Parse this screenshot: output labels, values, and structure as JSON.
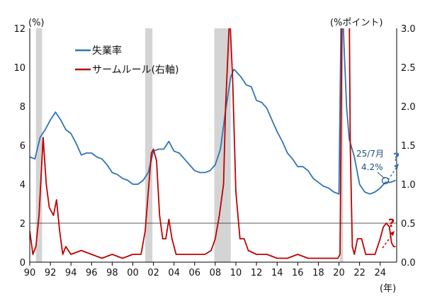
{
  "chart_data": {
    "type": "line",
    "title": "",
    "left_axis": {
      "unit": "(%)",
      "range": [
        0,
        12
      ],
      "ticks": [
        "0",
        "2",
        "4",
        "6",
        "8",
        "10",
        "12"
      ]
    },
    "right_axis": {
      "unit": "(%ポイント)",
      "range": [
        0,
        3.0
      ],
      "ticks": [
        "0.0",
        "0.5",
        "1.0",
        "1.5",
        "2.0",
        "2.5",
        "3.0"
      ]
    },
    "x_axis": {
      "unit": "(年)",
      "range": [
        1990,
        2025.6
      ],
      "tick_values": [
        1990,
        1992,
        1994,
        1996,
        1998,
        2000,
        2002,
        2004,
        2006,
        2008,
        2010,
        2012,
        2014,
        2016,
        2018,
        2020,
        2022,
        2024
      ],
      "tick_labels": [
        "90",
        "92",
        "94",
        "96",
        "98",
        "00",
        "02",
        "04",
        "06",
        "08",
        "10",
        "12",
        "14",
        "16",
        "18",
        "20",
        "22",
        "24"
      ]
    },
    "recessions": [
      [
        1990.6,
        1991.2
      ],
      [
        2001.2,
        2001.9
      ],
      [
        2007.9,
        2009.5
      ],
      [
        2020.1,
        2020.4
      ]
    ],
    "reference_line": {
      "axis": "right",
      "value": 0.5
    },
    "legend": {
      "placement": "top-left",
      "position": "upper-left"
    },
    "series": [
      {
        "name": "失業率",
        "axis": "left",
        "color": "#2e75b6",
        "x": [
          1990.0,
          1990.5,
          1991.0,
          1991.5,
          1992.0,
          1992.5,
          1993.0,
          1993.5,
          1994.0,
          1994.5,
          1995.0,
          1995.5,
          1996.0,
          1996.5,
          1997.0,
          1997.5,
          1998.0,
          1998.5,
          1999.0,
          1999.5,
          2000.0,
          2000.5,
          2001.0,
          2001.5,
          2002.0,
          2002.5,
          2003.0,
          2003.5,
          2004.0,
          2004.5,
          2005.0,
          2005.5,
          2006.0,
          2006.5,
          2007.0,
          2007.5,
          2008.0,
          2008.5,
          2009.0,
          2009.5,
          2009.8,
          2010.0,
          2010.5,
          2011.0,
          2011.5,
          2012.0,
          2012.5,
          2013.0,
          2013.5,
          2014.0,
          2014.5,
          2015.0,
          2015.5,
          2016.0,
          2016.5,
          2017.0,
          2017.5,
          2018.0,
          2018.5,
          2019.0,
          2019.5,
          2020.0,
          2020.25,
          2020.5,
          2020.75,
          2021.0,
          2021.5,
          2022.0,
          2022.5,
          2023.0,
          2023.5,
          2024.0,
          2024.5,
          2025.0,
          2025.5
        ],
        "values": [
          5.4,
          5.3,
          6.4,
          6.8,
          7.3,
          7.7,
          7.3,
          6.8,
          6.6,
          6.1,
          5.5,
          5.6,
          5.6,
          5.4,
          5.3,
          5.0,
          4.6,
          4.5,
          4.3,
          4.2,
          4.0,
          4.0,
          4.2,
          4.6,
          5.7,
          5.8,
          5.8,
          6.2,
          5.7,
          5.6,
          5.3,
          5.0,
          4.7,
          4.6,
          4.6,
          4.7,
          5.0,
          5.8,
          7.8,
          9.5,
          9.9,
          9.8,
          9.5,
          9.1,
          9.0,
          8.3,
          8.2,
          7.9,
          7.3,
          6.7,
          6.2,
          5.6,
          5.3,
          4.9,
          4.9,
          4.7,
          4.3,
          4.1,
          3.9,
          3.8,
          3.6,
          3.5,
          14.7,
          11.0,
          7.9,
          6.3,
          5.4,
          4.0,
          3.6,
          3.5,
          3.6,
          3.8,
          4.1,
          4.1,
          4.2
        ]
      },
      {
        "name": "サームルール(右軸)",
        "axis": "right",
        "color": "#c00000",
        "x": [
          1990.0,
          1990.3,
          1990.6,
          1990.9,
          1991.1,
          1991.3,
          1991.6,
          1991.9,
          1992.3,
          1992.6,
          1992.9,
          1993.2,
          1993.5,
          1994.0,
          1995.0,
          1996.0,
          1997.0,
          1998.0,
          1999.0,
          2000.0,
          2000.8,
          2001.2,
          2001.5,
          2001.8,
          2002.0,
          2002.3,
          2002.6,
          2002.9,
          2003.2,
          2003.5,
          2003.8,
          2004.2,
          2005.0,
          2006.0,
          2007.0,
          2007.6,
          2008.0,
          2008.4,
          2008.8,
          2009.0,
          2009.4,
          2009.7,
          2010.0,
          2010.4,
          2010.8,
          2011.2,
          2012.0,
          2013.0,
          2014.0,
          2015.0,
          2016.0,
          2017.0,
          2018.0,
          2019.0,
          2019.9,
          2020.1,
          2020.3,
          2020.5,
          2020.8,
          2021.0,
          2021.1,
          2021.3,
          2021.5,
          2021.8,
          2022.2,
          2022.6,
          2023.0,
          2023.5,
          2024.0,
          2024.3,
          2024.6,
          2024.9,
          2025.1,
          2025.3,
          2025.5
        ],
        "values": [
          0.4,
          0.1,
          0.2,
          0.6,
          1.1,
          1.6,
          1.0,
          0.7,
          0.6,
          0.8,
          0.4,
          0.1,
          0.2,
          0.1,
          0.15,
          0.1,
          0.05,
          0.1,
          0.05,
          0.1,
          0.1,
          0.4,
          0.9,
          1.4,
          1.45,
          1.3,
          0.6,
          0.3,
          0.3,
          0.55,
          0.3,
          0.1,
          0.1,
          0.1,
          0.1,
          0.15,
          0.3,
          0.6,
          1.0,
          2.0,
          3.2,
          2.3,
          0.9,
          0.3,
          0.3,
          0.15,
          0.1,
          0.1,
          0.05,
          0.05,
          0.1,
          0.05,
          0.05,
          0.05,
          0.05,
          0.1,
          3.2,
          3.2,
          3.2,
          3.2,
          1.5,
          0.2,
          0.1,
          0.3,
          0.3,
          0.1,
          0.1,
          0.1,
          0.3,
          0.45,
          0.5,
          0.45,
          0.25,
          0.2,
          0.2
        ]
      }
    ],
    "annotations": [
      {
        "text": "25/7月",
        "color": "#1f4e79"
      },
      {
        "text": "4.2%",
        "color": "#1f4e79"
      },
      {
        "text": "?",
        "color": "#2e75b6"
      },
      {
        "text": "?",
        "color": "#c00000"
      }
    ]
  }
}
